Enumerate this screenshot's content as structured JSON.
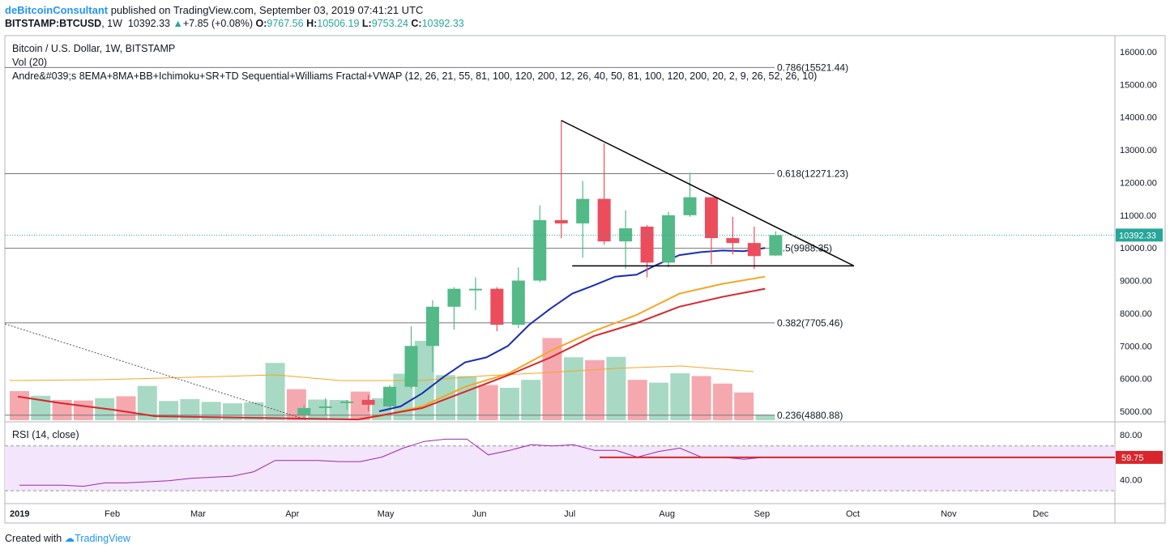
{
  "header": {
    "author": "deBitcoinConsultant",
    "published": " published on TradingView.com, September 03, 2019 07:41:21 UTC",
    "symbol": "BITSTAMP:BTCUSD",
    "interval": ", 1W",
    "last": "10392.33",
    "change": "+7.85 (+0.08%)",
    "o_label": "O:",
    "o": "9767.56",
    "h_label": "H:",
    "h": "10506.19",
    "l_label": "L:",
    "l": "9753.24",
    "c_label": "C:",
    "c": "10392.33"
  },
  "legend": {
    "title": "Bitcoin / U.S. Dollar, 1W, BITSTAMP",
    "vol": "Vol (20)",
    "indicator": "Andre&#039;s 8EMA+8MA+BB+Ichimoku+SR+TD Sequential+Williams Fractal+VWAP (12, 26, 21, 55, 81, 100, 120, 200, 12, 26, 40, 50, 81, 100, 120, 200, 20, 2, 9, 26, 52, 26, 10)",
    "rsi": "RSI (14, close)"
  },
  "footer": {
    "created": "Created with",
    "brand": "TradingView"
  },
  "colors": {
    "up": "#26a69a",
    "down": "#ef5350",
    "up_body": "#53b987",
    "down_body": "#eb4d5c",
    "ema_blue": "#1a2db5",
    "ma_red": "#d8262c",
    "ma_orange": "#f5a623",
    "rsi_line": "#9c27b0"
  },
  "chart_data": [
    {
      "type": "candlestick",
      "title": "Bitcoin / U.S. Dollar, 1W, BITSTAMP",
      "ylim": [
        4700,
        16600
      ],
      "y_ticks": [
        "16000.00",
        "15000.00",
        "14000.00",
        "13000.00",
        "12000.00",
        "11000.00",
        "10000.00",
        "9000.00",
        "8000.00",
        "7000.00",
        "6000.00",
        "5000.00"
      ],
      "x_ticks": [
        "2019",
        "Feb",
        "Mar",
        "Apr",
        "May",
        "Jun",
        "Jul",
        "Aug",
        "Sep",
        "Oct",
        "Nov",
        "Dec"
      ],
      "last_price_label": "10392.33",
      "fib_levels": [
        {
          "label": "0.786(15521.44)",
          "value": 15521.44
        },
        {
          "label": "0.618(12271.23)",
          "value": 12271.23
        },
        {
          "label": "0.5(9988.35)",
          "value": 9988.35
        },
        {
          "label": "0.382(7705.46)",
          "value": 7705.46
        },
        {
          "label": "0.236(4880.88)",
          "value": 4880.88
        }
      ],
      "candles": [
        {
          "date": "2019-04-01",
          "o": 4900,
          "h": 5200,
          "l": 4800,
          "c": 5100
        },
        {
          "date": "2019-04-08",
          "o": 5150,
          "h": 5400,
          "l": 4900,
          "c": 5150
        },
        {
          "date": "2019-04-15",
          "o": 5250,
          "h": 5350,
          "l": 5050,
          "c": 5300
        },
        {
          "date": "2019-04-22",
          "o": 5350,
          "h": 5500,
          "l": 5000,
          "c": 5200
        },
        {
          "date": "2019-04-29",
          "o": 5150,
          "h": 5800,
          "l": 5100,
          "c": 5750
        },
        {
          "date": "2019-05-06",
          "o": 5750,
          "h": 7600,
          "l": 5700,
          "c": 7000
        },
        {
          "date": "2019-05-13",
          "o": 7000,
          "h": 8400,
          "l": 6200,
          "c": 8200
        },
        {
          "date": "2019-05-20",
          "o": 8200,
          "h": 8800,
          "l": 7500,
          "c": 8750
        },
        {
          "date": "2019-05-27",
          "o": 8750,
          "h": 9100,
          "l": 8100,
          "c": 8750
        },
        {
          "date": "2019-06-03",
          "o": 8750,
          "h": 8800,
          "l": 7450,
          "c": 7650
        },
        {
          "date": "2019-06-10",
          "o": 7650,
          "h": 9400,
          "l": 7550,
          "c": 9000
        },
        {
          "date": "2019-06-17",
          "o": 9000,
          "h": 11300,
          "l": 8950,
          "c": 10850
        },
        {
          "date": "2019-06-24",
          "o": 10850,
          "h": 13900,
          "l": 10300,
          "c": 10750
        },
        {
          "date": "2019-07-01",
          "o": 10750,
          "h": 12050,
          "l": 9700,
          "c": 11500
        },
        {
          "date": "2019-07-08",
          "o": 11500,
          "h": 13200,
          "l": 10100,
          "c": 10200
        },
        {
          "date": "2019-07-15",
          "o": 10200,
          "h": 11150,
          "l": 9350,
          "c": 10600
        },
        {
          "date": "2019-07-22",
          "o": 10650,
          "h": 10700,
          "l": 9100,
          "c": 9550
        },
        {
          "date": "2019-07-29",
          "o": 9550,
          "h": 11100,
          "l": 9400,
          "c": 11000
        },
        {
          "date": "2019-08-05",
          "o": 11000,
          "h": 12300,
          "l": 10950,
          "c": 11550
        },
        {
          "date": "2019-08-12",
          "o": 11550,
          "h": 11550,
          "l": 9500,
          "c": 10300
        },
        {
          "date": "2019-08-19",
          "o": 10300,
          "h": 10950,
          "l": 9800,
          "c": 10150
        },
        {
          "date": "2019-08-26",
          "o": 10150,
          "h": 10650,
          "l": 9350,
          "c": 9750
        },
        {
          "date": "2019-09-02",
          "o": 9767.56,
          "h": 10506.19,
          "l": 9753.24,
          "c": 10392.33
        }
      ],
      "volume": [
        {
          "dir": "down",
          "v": 0.62
        },
        {
          "dir": "up",
          "v": 0.52
        },
        {
          "dir": "down",
          "v": 0.43
        },
        {
          "dir": "down",
          "v": 0.42
        },
        {
          "dir": "up",
          "v": 0.47
        },
        {
          "dir": "down",
          "v": 0.51
        },
        {
          "dir": "up",
          "v": 0.73
        },
        {
          "dir": "up",
          "v": 0.41
        },
        {
          "dir": "up",
          "v": 0.45
        },
        {
          "dir": "up",
          "v": 0.39
        },
        {
          "dir": "up",
          "v": 0.36
        },
        {
          "dir": "up",
          "v": 0.38
        },
        {
          "dir": "up",
          "v": 1.22
        },
        {
          "dir": "down",
          "v": 0.66
        },
        {
          "dir": "up",
          "v": 0.44
        },
        {
          "dir": "up",
          "v": 0.43
        },
        {
          "dir": "down",
          "v": 0.61
        },
        {
          "dir": "up",
          "v": 0.47
        },
        {
          "dir": "up",
          "v": 0.99
        },
        {
          "dir": "up",
          "v": 1.69
        },
        {
          "dir": "up",
          "v": 0.96
        },
        {
          "dir": "up",
          "v": 0.94
        },
        {
          "dir": "down",
          "v": 0.75
        },
        {
          "dir": "up",
          "v": 0.69
        },
        {
          "dir": "up",
          "v": 0.86
        },
        {
          "dir": "down",
          "v": 1.75
        },
        {
          "dir": "up",
          "v": 1.34
        },
        {
          "dir": "down",
          "v": 1.28
        },
        {
          "dir": "up",
          "v": 1.35
        },
        {
          "dir": "down",
          "v": 0.86
        },
        {
          "dir": "up",
          "v": 0.8
        },
        {
          "dir": "up",
          "v": 1.0
        },
        {
          "dir": "down",
          "v": 0.94
        },
        {
          "dir": "down",
          "v": 0.78
        },
        {
          "dir": "down",
          "v": 0.59
        },
        {
          "dir": "up",
          "v": 0.12
        }
      ],
      "triangle": {
        "apex_date": "2019-10-01",
        "apex_value": 9450,
        "top_start": {
          "date": "2019-06-24",
          "value": 13900
        },
        "base_start": {
          "date": "2019-07-01",
          "value": 9450
        }
      }
    },
    {
      "type": "line",
      "title": "RSI (14, close)",
      "ylim": [
        20,
        90
      ],
      "y_ticks": [
        "80.00",
        "40.00"
      ],
      "band": [
        30,
        70
      ],
      "last_value_label": "59.75",
      "horizontal_line": 59.75,
      "values": [
        35,
        35,
        35,
        34,
        37,
        37,
        38,
        39,
        41,
        42,
        43,
        47,
        57,
        57,
        57,
        56,
        56,
        60,
        68,
        74,
        76,
        76,
        62,
        66,
        71,
        70,
        71,
        66,
        66,
        60,
        65,
        68,
        60,
        60,
        58,
        60
      ]
    }
  ]
}
